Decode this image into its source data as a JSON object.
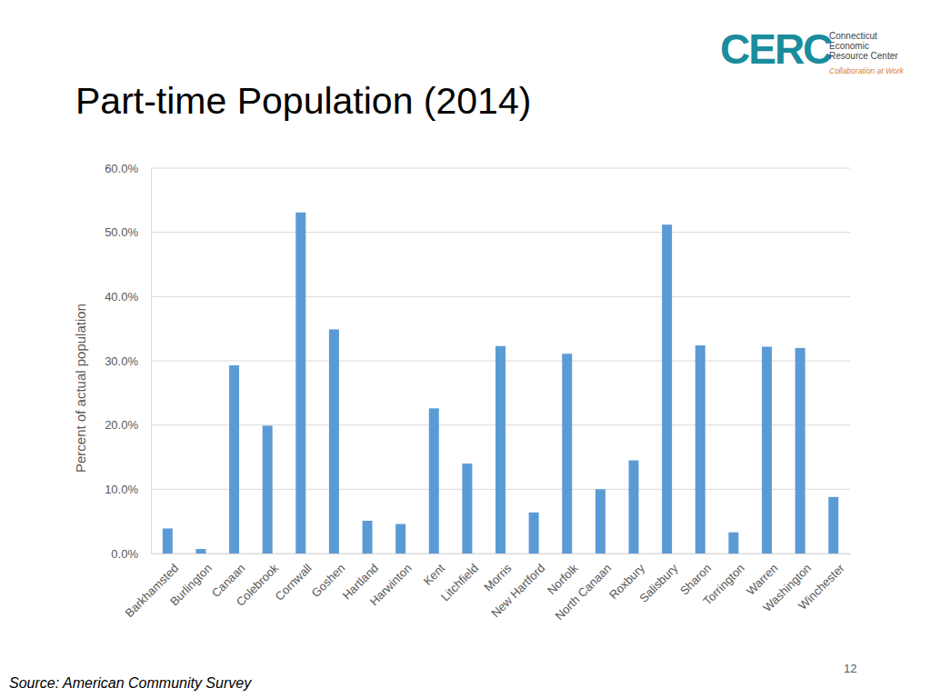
{
  "chart_data": {
    "type": "bar",
    "title": "Part-time Population (2014)",
    "y_label": "Percent of actual population",
    "categories": [
      "Barkhamsted",
      "Burlington",
      "Canaan",
      "Colebrook",
      "Cornwall",
      "Goshen",
      "Hartland",
      "Harwinton",
      "Kent",
      "Litchfield",
      "Morris",
      "New Hartford",
      "Norfolk",
      "North Canaan",
      "Roxbury",
      "Salisbury",
      "Sharon",
      "Torrington",
      "Warren",
      "Washington",
      "Winchester"
    ],
    "values": [
      3.9,
      0.7,
      29.3,
      19.9,
      53.1,
      34.9,
      5.1,
      4.6,
      22.6,
      14.0,
      32.3,
      6.4,
      31.1,
      10.0,
      14.5,
      51.2,
      32.4,
      3.3,
      32.2,
      32.0,
      8.8
    ],
    "color": "#5b9bd5",
    "ylim": [
      0,
      60
    ],
    "yticks": [
      {
        "value": 0,
        "label": "0.0%"
      },
      {
        "value": 10,
        "label": "10.0%"
      },
      {
        "value": 20,
        "label": "20.0%"
      },
      {
        "value": 30,
        "label": "30.0%"
      },
      {
        "value": 40,
        "label": "40.0%"
      },
      {
        "value": 50,
        "label": "50.0%"
      },
      {
        "value": 60,
        "label": "60.0%"
      }
    ],
    "grid": true
  },
  "slide": {
    "logo": "CERC",
    "org": [
      "Connecticut",
      "Economic",
      "Resource Center"
    ],
    "tagline": "Collaboration at Work",
    "source": "Source: American Community Survey",
    "page_number": "12"
  }
}
